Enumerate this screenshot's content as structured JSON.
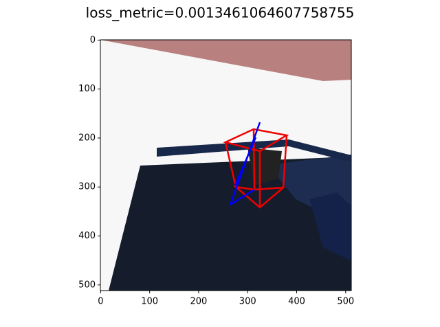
{
  "chart_data": {
    "type": "image",
    "title": "loss_metric=0.0013461064607758755",
    "xlim": [
      -0.5,
      511.5
    ],
    "ylim": [
      511.5,
      -0.5
    ],
    "xticks": [
      0,
      100,
      200,
      300,
      400,
      500
    ],
    "yticks": [
      0,
      100,
      200,
      300,
      400,
      500
    ]
  }
}
